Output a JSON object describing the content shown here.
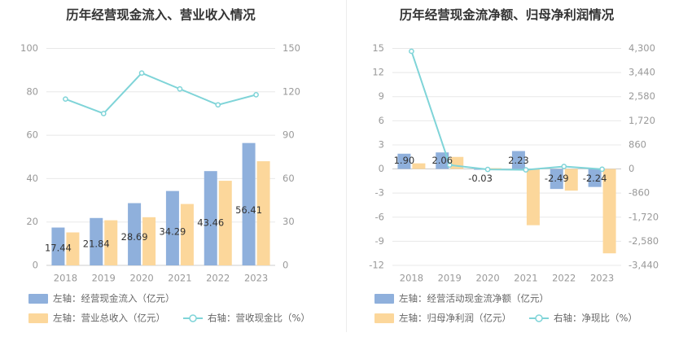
{
  "colors": {
    "bar_blue": "#8fb0dc",
    "bar_yellow": "#fcd79b",
    "line_teal": "#7fd4d8",
    "grid": "#e8e8e8",
    "axis": "#cccccc"
  },
  "chart_data": [
    {
      "type": "bar",
      "title": "历年经营现金流入、营业收入情况",
      "categories": [
        "2018",
        "2019",
        "2020",
        "2021",
        "2022",
        "2023"
      ],
      "y_left": {
        "ticks": [
          "0",
          "20",
          "40",
          "60",
          "80",
          "100"
        ],
        "lim": [
          0,
          100
        ]
      },
      "y_right": {
        "ticks": [
          "0",
          "30",
          "60",
          "90",
          "120",
          "150"
        ],
        "lim": [
          0,
          150
        ]
      },
      "grid": true,
      "legend_position": "bottom-left",
      "series": [
        {
          "name": "左轴：经营现金流入（亿元）",
          "type": "bar",
          "axis": "left",
          "color": "#8fb0dc",
          "values": [
            17.44,
            21.84,
            28.69,
            34.29,
            43.46,
            56.41
          ],
          "labels": [
            "17.44",
            "21.84",
            "28.69",
            "34.29",
            "43.46",
            "56.41"
          ]
        },
        {
          "name": "左轴：营业总收入（亿元）",
          "type": "bar",
          "axis": "left",
          "color": "#fcd79b",
          "values": [
            15.2,
            20.8,
            22.2,
            28.3,
            39.0,
            48.0
          ]
        },
        {
          "name": "右轴：营收现金比（%）",
          "type": "line",
          "axis": "right",
          "color": "#7fd4d8",
          "values": [
            115,
            105,
            133,
            122,
            111,
            118
          ]
        }
      ]
    },
    {
      "type": "bar",
      "title": "历年经营现金流净额、归母净利润情况",
      "categories": [
        "2018",
        "2019",
        "2020",
        "2021",
        "2022",
        "2023"
      ],
      "y_left": {
        "ticks": [
          "-12",
          "-9",
          "-6",
          "-3",
          "0",
          "3",
          "6",
          "9",
          "12",
          "15"
        ],
        "lim": [
          -12,
          15
        ]
      },
      "y_right": {
        "ticks": [
          "-3,440",
          "-2,580",
          "-1,720",
          "-860",
          "0",
          "860",
          "1,720",
          "2,580",
          "3,440",
          "4,300"
        ],
        "lim": [
          -3440,
          4300
        ]
      },
      "grid": true,
      "legend_position": "bottom-left",
      "series": [
        {
          "name": "左轴：经营活动现金流净额（亿元）",
          "type": "bar",
          "axis": "left",
          "color": "#8fb0dc",
          "values": [
            1.9,
            2.06,
            -0.03,
            2.23,
            -2.49,
            -2.24
          ],
          "labels": [
            "1.90",
            "2.06",
            "-0.03",
            "2.23",
            "-2.49",
            "-2.24"
          ]
        },
        {
          "name": "左轴：归母净利润（亿元）",
          "type": "bar",
          "axis": "left",
          "color": "#fcd79b",
          "values": [
            0.7,
            1.5,
            0.1,
            -7.0,
            -2.7,
            -10.5
          ]
        },
        {
          "name": "右轴：净现比（%）",
          "type": "line",
          "axis": "right",
          "color": "#7fd4d8",
          "values": [
            4200,
            140,
            -15,
            -30,
            90,
            -10
          ]
        }
      ]
    }
  ]
}
